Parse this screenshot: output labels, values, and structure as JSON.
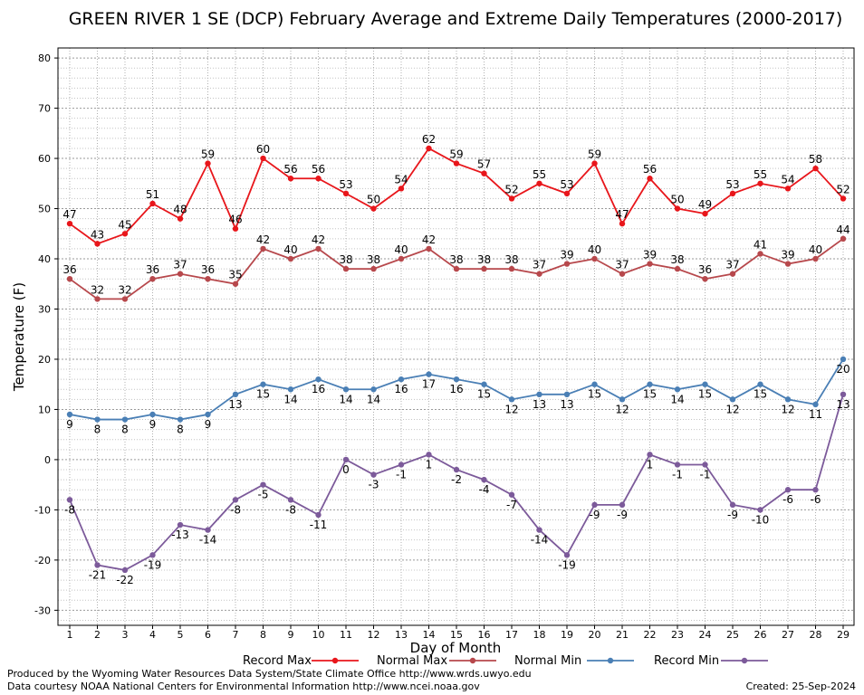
{
  "chart_data": {
    "type": "line",
    "title": "GREEN RIVER 1 SE (DCP) February Average and Extreme Daily Temperatures (2000-2017)",
    "xlabel": "Day of Month",
    "ylabel": "Temperature (F)",
    "ylim": [
      -33,
      82
    ],
    "yticks": [
      -30,
      -20,
      -10,
      0,
      10,
      20,
      30,
      40,
      50,
      60,
      70,
      80
    ],
    "x": [
      1,
      2,
      3,
      4,
      5,
      6,
      7,
      8,
      9,
      10,
      11,
      12,
      13,
      14,
      15,
      16,
      17,
      18,
      19,
      20,
      21,
      22,
      23,
      24,
      25,
      26,
      27,
      28,
      29
    ],
    "grid": true,
    "legend_position": "bottom",
    "series": [
      {
        "name": "Record Max",
        "color": "#e8161b",
        "label_pos": "above",
        "values": [
          47,
          43,
          45,
          51,
          48,
          59,
          46,
          60,
          56,
          56,
          53,
          50,
          54,
          62,
          59,
          57,
          52,
          55,
          53,
          59,
          47,
          56,
          50,
          49,
          53,
          55,
          54,
          58,
          52
        ]
      },
      {
        "name": "Normal Max",
        "color": "#b7484c",
        "label_pos": "above",
        "values": [
          36,
          32,
          32,
          36,
          37,
          36,
          35,
          42,
          40,
          42,
          38,
          38,
          40,
          42,
          38,
          38,
          38,
          37,
          39,
          40,
          37,
          39,
          38,
          36,
          37,
          41,
          39,
          40,
          44
        ]
      },
      {
        "name": "Normal Min",
        "color": "#4a7fb5",
        "label_pos": "below",
        "values": [
          9,
          8,
          8,
          9,
          8,
          9,
          13,
          15,
          14,
          16,
          14,
          14,
          16,
          17,
          16,
          15,
          12,
          13,
          13,
          15,
          12,
          15,
          14,
          15,
          12,
          15,
          12,
          11,
          20
        ]
      },
      {
        "name": "Record Min",
        "color": "#7c5a9a",
        "label_pos": "below",
        "values": [
          -8,
          -21,
          -22,
          -19,
          -13,
          -14,
          -8,
          -5,
          -8,
          -11,
          0,
          -3,
          -1,
          1,
          -2,
          -4,
          -7,
          -14,
          -19,
          -9,
          -9,
          1,
          -1,
          -1,
          -9,
          -10,
          -6,
          -6,
          13
        ]
      }
    ]
  },
  "footer": {
    "producer": "Produced by the Wyoming Water Resources Data System/State Climate Office http://www.wrds.uwyo.edu",
    "source": "Data courtesy NOAA National Centers for Environmental Information http://www.ncei.noaa.gov",
    "created": "Created:  25-Sep-2024"
  }
}
